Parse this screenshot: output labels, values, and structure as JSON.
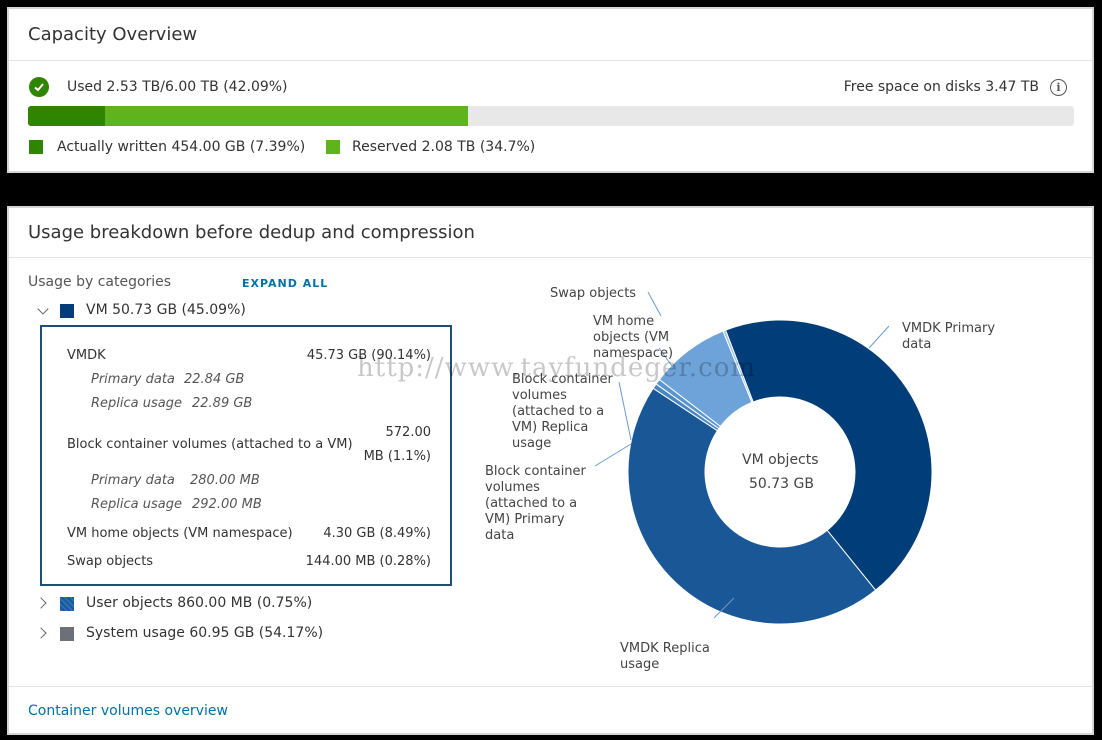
{
  "capacity": {
    "title": "Capacity Overview",
    "used_text": "Used 2.53 TB/6.00 TB (42.09%)",
    "free_text": "Free space on disks 3.47 TB",
    "bar": {
      "written_fraction": 0.0739,
      "reserved_fraction": 0.347,
      "written_color": "#2f8400",
      "reserved_color": "#5fb31c",
      "track_color": "#e8e8e8"
    },
    "legend_written": "Actually written 454.00 GB (7.39%)",
    "legend_reserved": "Reserved 2.08 TB (34.7%)",
    "status_icon": "check-circle-icon",
    "info_icon": "info-circle-icon"
  },
  "breakdown": {
    "title": "Usage breakdown before dedup and compression",
    "categories_label": "Usage by categories",
    "expand_all": "EXPAND ALL",
    "vm": {
      "label": "VM 50.73 GB (45.09%)",
      "color": "#003d79",
      "items": {
        "vmdk_label": "VMDK",
        "vmdk_value": "45.73 GB (90.14%)",
        "vmdk_primary": "Primary data",
        "vmdk_primary_value": "22.84 GB",
        "vmdk_replica": "Replica usage",
        "vmdk_replica_value": "22.89 GB",
        "bcv_label": "Block container volumes (attached to a VM)",
        "bcv_value_line1": "572.00",
        "bcv_value_line2": "MB (1.1%)",
        "bcv_primary": "Primary data",
        "bcv_primary_value": "280.00 MB",
        "bcv_replica": "Replica usage",
        "bcv_replica_value": "292.00 MB",
        "home_label": "VM home objects (VM namespace)",
        "home_value": "4.30 GB (8.49%)",
        "swap_label": "Swap objects",
        "swap_value": "144.00 MB (0.28%)"
      }
    },
    "user_objects": {
      "label": "User objects 860.00 MB (0.75%)",
      "color": "#2c6fb3"
    },
    "system_usage": {
      "label": "System usage 60.95 GB (54.17%)",
      "color": "#6b7079"
    },
    "footer_link": "Container volumes overview"
  },
  "chart_data": {
    "type": "pie",
    "center_line1": "VM objects",
    "center_line2": "50.73 GB",
    "slices": [
      {
        "name": "VMDK Primary data",
        "value": 22.84,
        "color": "#003d79"
      },
      {
        "name": "VMDK Replica usage",
        "value": 22.89,
        "color": "#1a5796"
      },
      {
        "name": "Block container volumes (attached to a VM) Primary data",
        "value": 0.28,
        "color": "#4a86c5"
      },
      {
        "name": "Block container volumes (attached to a VM) Replica usage",
        "value": 0.292,
        "color": "#5b95d0"
      },
      {
        "name": "VM home objects (VM namespace)",
        "value": 4.3,
        "color": "#6ea3d9"
      },
      {
        "name": "Swap objects",
        "value": 0.144,
        "color": "#9cc3ea"
      }
    ],
    "labels": {
      "vmdk_primary": [
        "VMDK Primary",
        "data"
      ],
      "vmdk_replica": [
        "VMDK Replica",
        "usage"
      ],
      "bcv_replica": [
        "Block container",
        "volumes",
        "(attached to a",
        "VM) Replica",
        "usage"
      ],
      "bcv_primary": [
        "Block container",
        "volumes",
        "(attached to a",
        "VM) Primary",
        "data"
      ],
      "vm_home": [
        "VM home",
        "objects (VM",
        "namespace)"
      ],
      "swap": [
        "Swap objects"
      ]
    }
  },
  "watermark": "http://www.tayfundeger.com"
}
